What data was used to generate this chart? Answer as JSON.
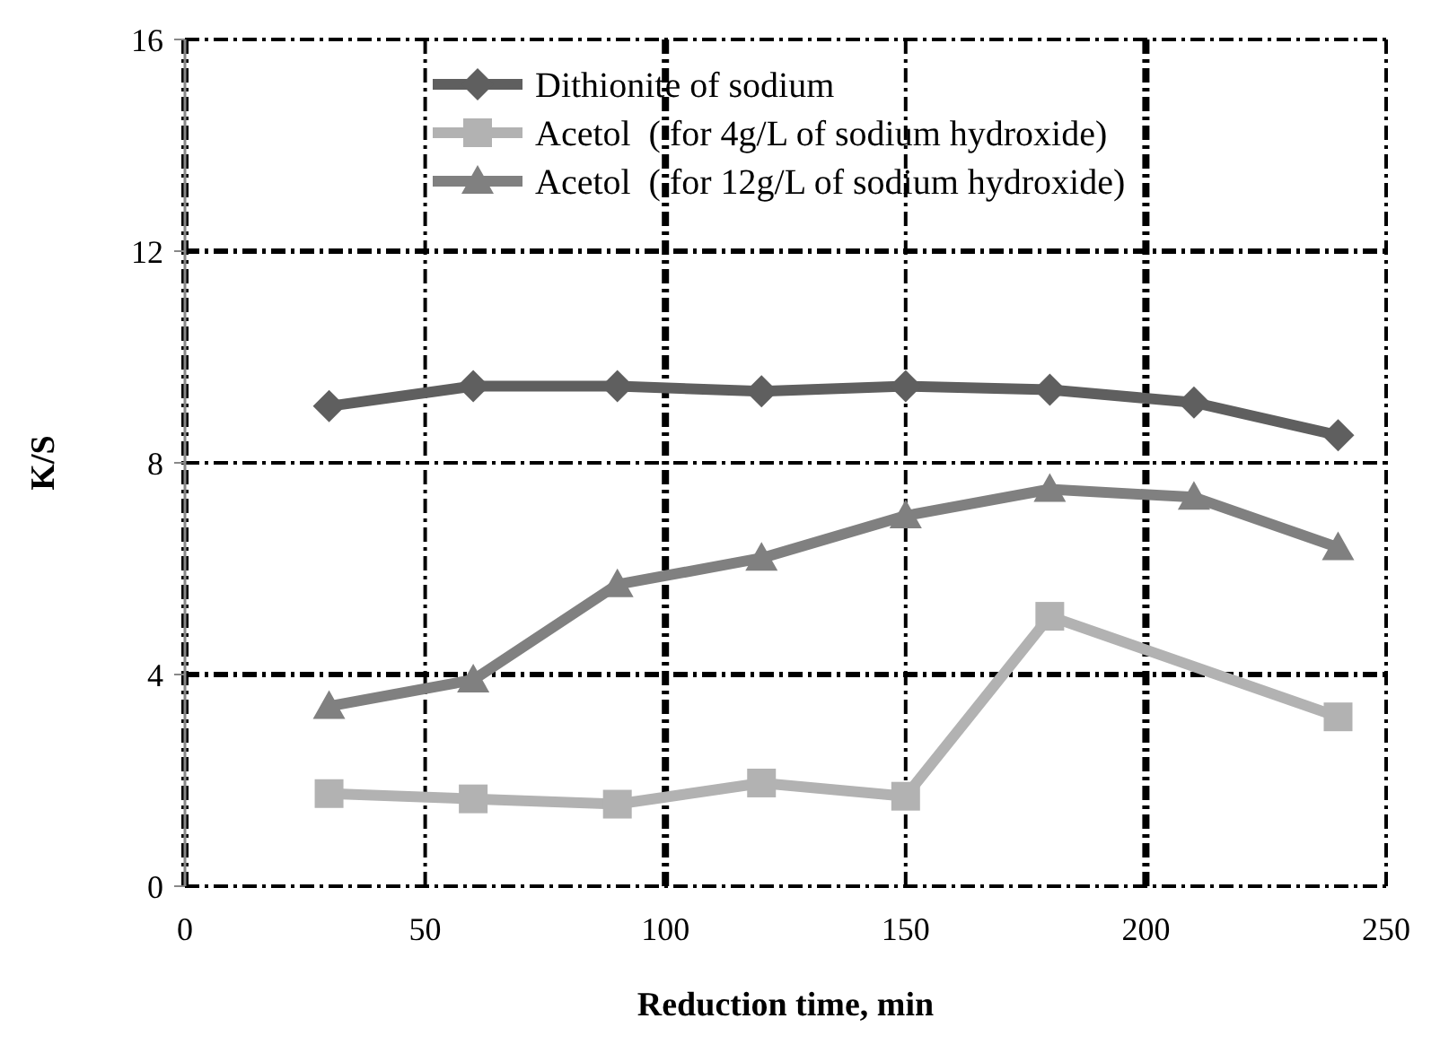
{
  "chart_data": {
    "type": "line",
    "xlabel": "Reduction time, min",
    "ylabel": "K/S",
    "x": [
      30,
      60,
      90,
      120,
      150,
      180,
      210,
      240
    ],
    "series": [
      {
        "name": "Dithionite of sodium",
        "color": "#5f5f5f",
        "marker": "diamond",
        "values": [
          9.07,
          9.45,
          9.45,
          9.35,
          9.45,
          9.38,
          9.14,
          8.52
        ]
      },
      {
        "name": "Acetol  ( for 4g/L of sodium hydroxide)",
        "color": "#b2b2b2",
        "marker": "square",
        "x": [
          30,
          60,
          90,
          120,
          150,
          180,
          240
        ],
        "values": [
          1.75,
          1.65,
          1.55,
          1.95,
          1.7,
          5.1,
          3.2
        ]
      },
      {
        "name": "Acetol  ( for 12g/L of sodium hydroxide)",
        "color": "#808080",
        "marker": "triangle",
        "values": [
          3.4,
          3.9,
          5.7,
          6.2,
          7.0,
          7.5,
          7.35,
          6.4
        ]
      }
    ],
    "xlim": [
      0,
      250
    ],
    "xticks": [
      0,
      50,
      100,
      150,
      200,
      250
    ],
    "ylim": [
      0,
      16
    ],
    "yticks": [
      0,
      4,
      8,
      12,
      16
    ],
    "grid": true,
    "legend": "top left"
  }
}
